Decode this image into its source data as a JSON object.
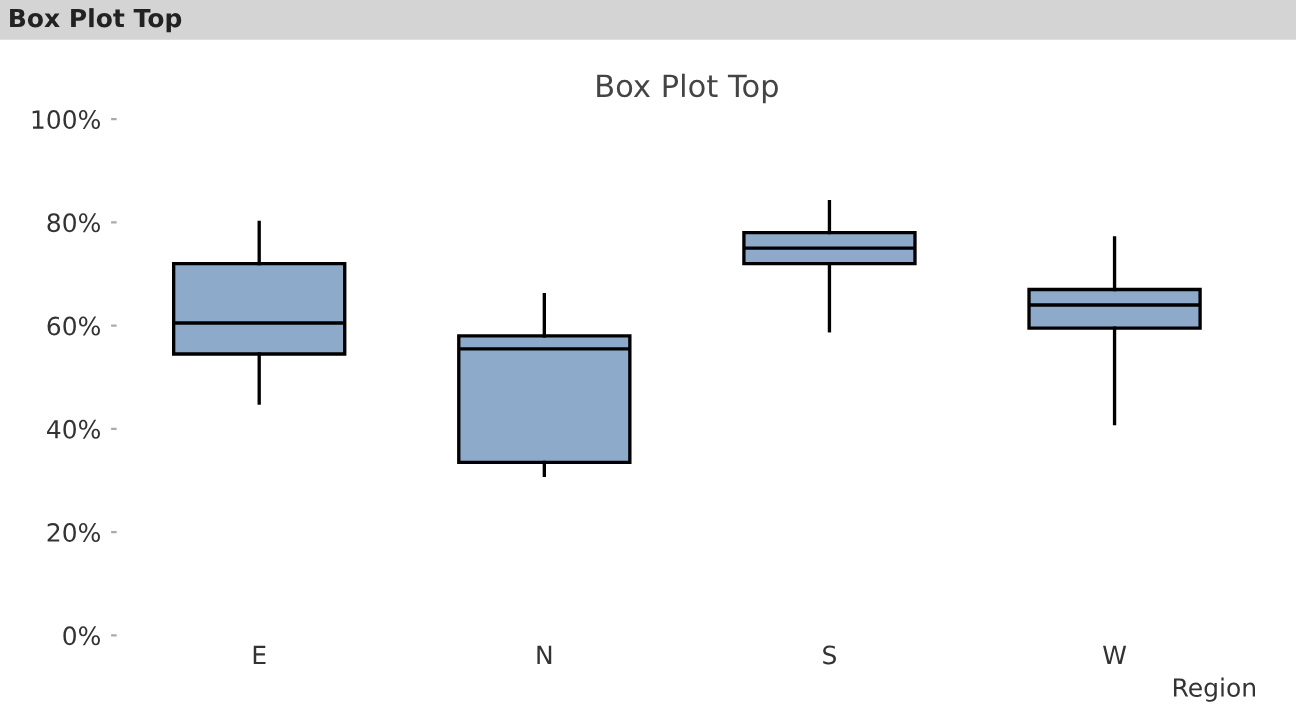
{
  "chart_data": {
    "type": "box",
    "title": "Box Plot Top",
    "xlabel": "Region",
    "annotations": [
      "Box Plot Top"
    ],
    "categories": [
      "E",
      "N",
      "S",
      "W"
    ],
    "color": "#8eaacb",
    "boxes": [
      {
        "low": 45,
        "q1": 54.5,
        "median": 60.5,
        "q3": 72,
        "high": 80
      },
      {
        "low": 31,
        "q1": 33.5,
        "median": 55.5,
        "q3": 58,
        "high": 66
      },
      {
        "low": 59,
        "q1": 72,
        "median": 75,
        "q3": 78,
        "high": 84
      },
      {
        "low": 41,
        "q1": 59.5,
        "median": 64,
        "q3": 67,
        "high": 77
      }
    ],
    "ylim": [
      0,
      100
    ],
    "yticks": [
      {
        "value": 0,
        "label": "0%"
      },
      {
        "value": 20,
        "label": "20%"
      },
      {
        "value": 40,
        "label": "40%"
      },
      {
        "value": 60,
        "label": "60%"
      },
      {
        "value": 80,
        "label": "80%"
      },
      {
        "value": 100,
        "label": "100%"
      }
    ],
    "grid": false,
    "legend": false
  }
}
